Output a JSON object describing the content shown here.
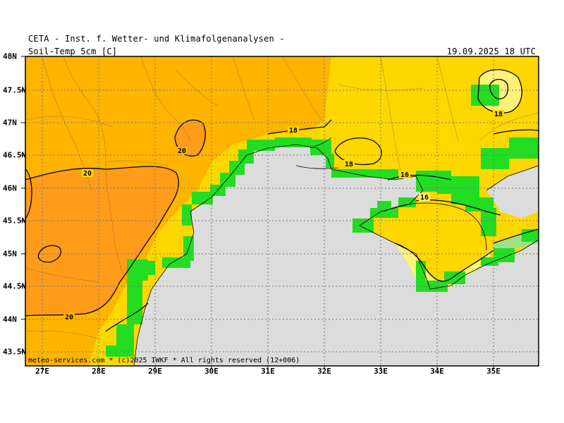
{
  "header": {
    "title": "CETA - Inst. f. Wetter- und Klimafolgenanalysen -",
    "parameter": "Soil-Temp 5cm [C]",
    "valid_time": "19.09.2025 18 UTC"
  },
  "footer": {
    "credit": "meteo-services.com * (c)2025 IWKF * All rights reserved (12+006)"
  },
  "axes": {
    "lat_labels": [
      "48N",
      "47.5N",
      "47N",
      "46.5N",
      "46N",
      "45.5N",
      "45N",
      "44.5N",
      "44N",
      "43.5N"
    ],
    "lon_labels": [
      "27E",
      "28E",
      "29E",
      "30E",
      "31E",
      "32E",
      "33E",
      "34E",
      "35E"
    ]
  },
  "contour_labels": [
    "20",
    "18",
    "18",
    "18",
    "16",
    "20",
    "20",
    "16",
    "18"
  ],
  "colors": {
    "sea": "#dcdcdc",
    "land_mask": "#22dd22",
    "temp_16_18": "#fff27a",
    "temp_18_20": "#ffd700",
    "temp_20_22": "#ffb400",
    "temp_22_24": "#ff9c1a",
    "cool_lt16": "#9ee08a"
  }
}
